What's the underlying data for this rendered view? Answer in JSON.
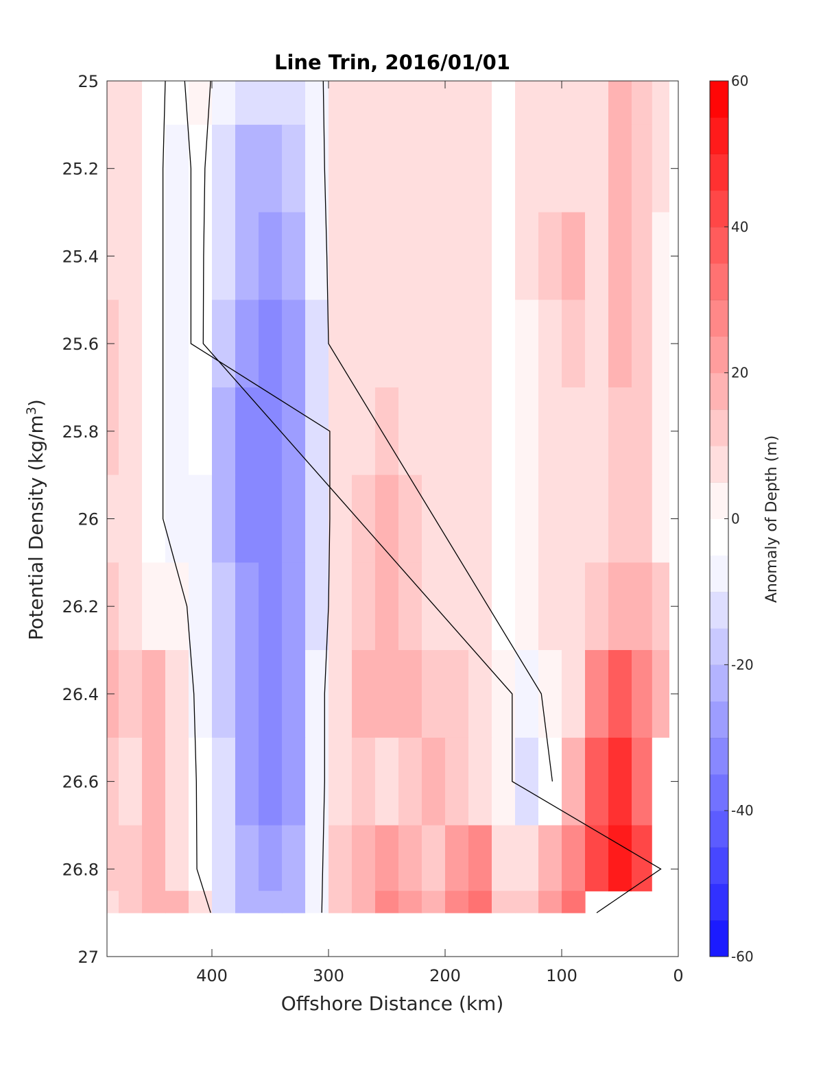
{
  "chart_data": {
    "type": "heatmap",
    "title": "Line Trin, 2016/01/01",
    "xlabel": "Offshore Distance (km)",
    "ylabel": "Potential Density (kg/m",
    "ylabel_sup": "3",
    "ylabel_close": ")",
    "xlim": [
      490,
      0
    ],
    "xticks": [
      400,
      300,
      200,
      100,
      0
    ],
    "xtick_labels": [
      "400",
      "300",
      "200",
      "100",
      "0"
    ],
    "ylim": [
      25,
      27
    ],
    "yticks": [
      25,
      25.2,
      25.4,
      25.6,
      25.8,
      26,
      26.2,
      26.4,
      26.6,
      26.8,
      27
    ],
    "ytick_labels": [
      "25",
      "25.2",
      "25.4",
      "25.6",
      "25.8",
      "26",
      "26.2",
      "26.4",
      "26.6",
      "26.8",
      "27"
    ],
    "colorbar": {
      "label": "Anomaly of Depth (m)",
      "range": [
        -60,
        60
      ],
      "ticks": [
        60,
        40,
        20,
        0,
        -20,
        -40,
        -60
      ],
      "tick_labels": [
        "60",
        "40",
        "20",
        "0",
        "-20",
        "-40",
        "-60"
      ],
      "level_step": 5,
      "low_color": "#0000ff",
      "mid_color": "#ffffff",
      "high_color": "#ff0000"
    },
    "x": [
      490,
      470,
      450,
      430,
      410,
      390,
      370,
      350,
      330,
      310,
      290,
      270,
      250,
      230,
      210,
      190,
      170,
      150,
      130,
      110,
      90,
      70,
      50,
      30,
      15
    ],
    "y": [
      25.0,
      25.2,
      25.4,
      25.6,
      25.8,
      26.0,
      26.2,
      26.4,
      26.6,
      26.8,
      26.9
    ],
    "anomaly": [
      [
        12,
        8,
        2,
        -2,
        4,
        -5,
        -10,
        -12,
        -8,
        -3,
        8,
        10,
        12,
        10,
        8,
        10,
        12,
        2,
        8,
        10,
        12,
        10,
        18,
        15,
        8
      ],
      [
        12,
        8,
        2,
        -3,
        2,
        -8,
        -18,
        -20,
        -15,
        -4,
        8,
        10,
        12,
        10,
        8,
        10,
        12,
        2,
        8,
        12,
        12,
        10,
        18,
        15,
        8
      ],
      [
        12,
        8,
        2,
        -3,
        2,
        -12,
        -22,
        -25,
        -20,
        -6,
        8,
        10,
        12,
        10,
        8,
        10,
        12,
        2,
        8,
        15,
        18,
        10,
        18,
        15,
        5
      ],
      [
        15,
        10,
        2,
        -3,
        2,
        -14,
        -26,
        -30,
        -25,
        -8,
        8,
        10,
        10,
        10,
        8,
        10,
        12,
        2,
        6,
        12,
        15,
        12,
        18,
        15,
        5
      ],
      [
        15,
        8,
        2,
        -3,
        -2,
        -18,
        -28,
        -30,
        -25,
        -10,
        8,
        12,
        15,
        12,
        10,
        10,
        12,
        2,
        3,
        10,
        12,
        12,
        16,
        15,
        5
      ],
      [
        12,
        8,
        2,
        -3,
        -4,
        -18,
        -28,
        -32,
        -25,
        -10,
        8,
        15,
        18,
        15,
        10,
        10,
        12,
        2,
        3,
        8,
        12,
        10,
        15,
        15,
        5
      ],
      [
        15,
        12,
        6,
        3,
        -4,
        -16,
        -26,
        -30,
        -25,
        -8,
        8,
        15,
        18,
        15,
        12,
        10,
        10,
        2,
        3,
        8,
        10,
        15,
        22,
        22,
        15
      ],
      [
        18,
        15,
        18,
        8,
        -3,
        -15,
        -26,
        -30,
        -25,
        -6,
        12,
        18,
        22,
        20,
        15,
        15,
        12,
        3,
        -5,
        3,
        10,
        30,
        40,
        30,
        20
      ],
      [
        15,
        12,
        20,
        10,
        -2,
        -12,
        -25,
        -30,
        -25,
        -6,
        12,
        15,
        12,
        15,
        18,
        15,
        12,
        6,
        -10,
        -2,
        18,
        40,
        50,
        35,
        0
      ],
      [
        15,
        15,
        20,
        12,
        -2,
        -10,
        -20,
        -26,
        -22,
        -5,
        15,
        18,
        25,
        20,
        15,
        25,
        30,
        10,
        8,
        20,
        30,
        45,
        55,
        45,
        0
      ],
      [
        12,
        15,
        22,
        18,
        8,
        -10,
        -18,
        -20,
        -18,
        -4,
        15,
        20,
        30,
        25,
        18,
        30,
        35,
        15,
        15,
        25,
        35,
        0,
        0,
        0,
        0
      ]
    ]
  }
}
